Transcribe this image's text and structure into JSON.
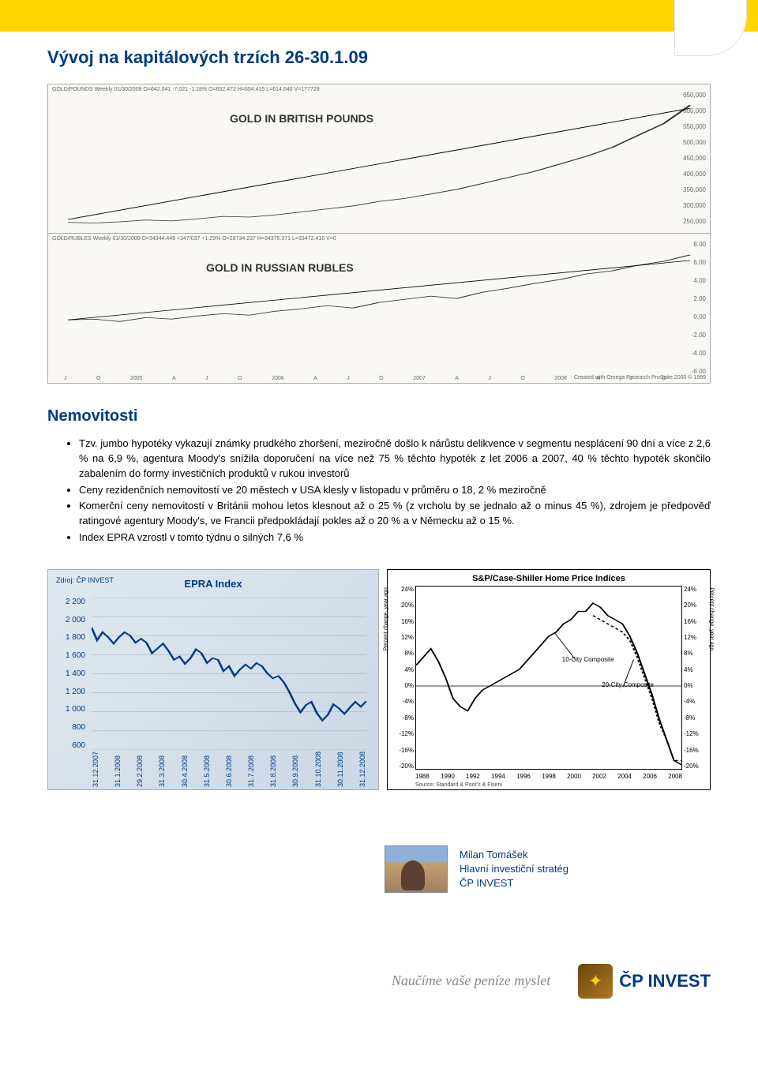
{
  "header": {
    "title": "Vývoj na kapitálových trzích 26-30.1.09"
  },
  "top_chart": {
    "header_text": "GOLD/POUNDS Weekly 01/30/2009 O=642.041 -7.021 -1.18% O=652.472 H=654.415 L=614.640 V=177729",
    "label_top": "GOLD IN BRITISH POUNDS",
    "label_bot": "GOLD IN RUSSIAN RUBLES",
    "footer_text": "Created with Omega Research ProSuite 2000 © 1999",
    "mid_header_text": "GOLD/RUBLES Weekly 01/30/2009 O=34344.449 +347/037 +1.29% O=28734.237 H=34375.371 L=33472.416 V=0",
    "y_top": [
      "650,000",
      "600,000",
      "550,000",
      "500,000",
      "450,000",
      "400,000",
      "350,000",
      "300,000",
      "250,000"
    ],
    "y_bot": [
      "8.00",
      "6.00",
      "4.00",
      "2.00",
      "0.00",
      "-2.00",
      "-4.00",
      "-6.00"
    ],
    "x_labels": [
      "J",
      "O",
      "2005",
      "A",
      "J",
      "O",
      "2006",
      "A",
      "J",
      "O",
      "2007",
      "A",
      "J",
      "O",
      "2008",
      "A",
      "J",
      "O"
    ],
    "series_top": [
      250,
      248,
      252,
      258,
      255,
      262,
      270,
      268,
      275,
      285,
      295,
      305,
      320,
      330,
      345,
      360,
      380,
      400,
      420,
      445,
      470,
      500,
      540,
      580,
      640
    ],
    "trend_top": [
      [
        0,
        260
      ],
      [
        1,
        630
      ]
    ],
    "series_bot": [
      0.0,
      0.1,
      -0.2,
      0.3,
      0.1,
      0.5,
      0.8,
      0.6,
      1.1,
      1.4,
      1.8,
      1.5,
      2.2,
      2.6,
      3.0,
      2.7,
      3.5,
      4.0,
      4.6,
      5.1,
      5.8,
      6.2,
      6.9,
      7.4,
      8.2
    ],
    "trend_bot": [
      [
        0,
        0
      ],
      [
        1,
        7.5
      ]
    ]
  },
  "section": {
    "heading": "Nemovitosti",
    "bullets": [
      "Tzv. jumbo hypotéky vykazují známky prudkého zhoršení, meziročně došlo k nárůstu delikvence v segmentu nesplácení 90 dní a více z 2,6 % na 6,9 %, agentura Moody's snížila doporučení na více než 75 % těchto hypoték z let 2006 a 2007, 40 % těchto hypoték skončilo zabalením do formy investičních produktů v rukou investorů",
      "Ceny rezidenčních nemovitostí ve 20 městech v USA klesly v listopadu v průměru o 18, 2 % meziročně",
      "Komerční ceny nemovitostí v Británii mohou letos klesnout až o 25 % (z vrcholu by se jednalo až o minus 45 %), zdrojem je předpověď ratingové agentury Moody's, ve Francii předpokládají pokles až o 20 % a v Německu až o 15 %.",
      "Index EPRA vzrostl v tomto týdnu o silných 7,6 %"
    ]
  },
  "epra": {
    "source": "Zdroj: ČP INVEST",
    "title": "EPRA Index",
    "yticks": [
      "2 200",
      "2 000",
      "1 800",
      "1 600",
      "1 400",
      "1 200",
      "1 000",
      "800",
      "600"
    ],
    "ylim": [
      600,
      2200
    ],
    "xticks": [
      "31.12.2007",
      "31.1.2008",
      "29.2.2008",
      "31.3.2008",
      "30.4.2008",
      "31.5.2008",
      "30.6.2008",
      "31.7.2008",
      "31.8.2008",
      "30.9.2008",
      "31.10.2008",
      "30.11.2008",
      "31.12.2008"
    ],
    "series": [
      2020,
      1860,
      1960,
      1900,
      1820,
      1900,
      1960,
      1920,
      1830,
      1880,
      1830,
      1700,
      1760,
      1820,
      1730,
      1620,
      1660,
      1570,
      1640,
      1750,
      1700,
      1580,
      1640,
      1620,
      1480,
      1540,
      1420,
      1500,
      1560,
      1510,
      1580,
      1540,
      1450,
      1390,
      1420,
      1340,
      1220,
      1080,
      970,
      1060,
      1100,
      960,
      870,
      940,
      1070,
      1020,
      950,
      1030,
      1100,
      1040,
      1110
    ],
    "line_color": "#003a80"
  },
  "sp": {
    "title": "S&P/Case-Shiller Home Price Indices",
    "yticks": [
      "24%",
      "20%",
      "16%",
      "12%",
      "8%",
      "4%",
      "0%",
      "-4%",
      "-8%",
      "-12%",
      "-16%",
      "-20%"
    ],
    "ylim": [
      -20,
      24
    ],
    "xticks": [
      "1988",
      "1990",
      "1992",
      "1994",
      "1996",
      "1998",
      "2000",
      "2002",
      "2004",
      "2006",
      "2008"
    ],
    "source": "Source: Standard & Poor's & Fiserv",
    "axis_label": "Percent change, year ago",
    "ann1": "10-City Composite",
    "ann2": "20-City Composite",
    "series10": [
      5,
      7,
      9,
      6,
      2,
      -3,
      -5,
      -6,
      -3,
      -1,
      0,
      1,
      2,
      3,
      4,
      6,
      8,
      10,
      12,
      13,
      15,
      16,
      18,
      18,
      20,
      19,
      17,
      16,
      15,
      12,
      8,
      3,
      -2,
      -8,
      -13,
      -18,
      -19
    ],
    "series20": [
      null,
      null,
      null,
      null,
      null,
      null,
      null,
      null,
      null,
      null,
      null,
      null,
      null,
      null,
      null,
      null,
      null,
      null,
      null,
      null,
      null,
      null,
      null,
      null,
      17,
      16,
      15,
      14,
      13,
      11,
      7,
      2,
      -3,
      -9,
      -13,
      -18,
      -18
    ]
  },
  "author": {
    "name": "Milan Tomášek",
    "role": "Hlavní investiční stratég",
    "org": "ČP INVEST"
  },
  "footer": {
    "slogan": "Naučíme vaše peníze myslet",
    "logo_text": "ČP INVEST"
  }
}
